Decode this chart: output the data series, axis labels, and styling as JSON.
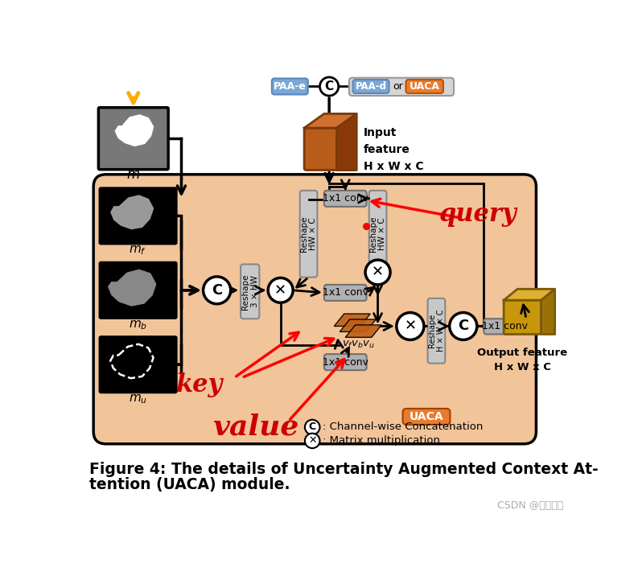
{
  "bg_color": "#ffffff",
  "diagram_bg": "#f2c49a",
  "paa_e_color": "#7ba7d4",
  "paa_d_color": "#7ba7d4",
  "uaca_top_color": "#e87c2e",
  "input_cube_front": "#b85c1a",
  "input_cube_top": "#d07030",
  "input_cube_right": "#8a3a08",
  "output_cube_front": "#c8960a",
  "output_cube_top": "#e0b030",
  "output_cube_right": "#9a7008",
  "conv_box_color": "#b0b0b0",
  "reshape_box_color": "#c8c8c8",
  "uaca_label_color": "#e87c2e",
  "watermark": "CSDN @韩墨大人",
  "caption_line1": "Figure 4: The details of Uncertainty Augmented Context At-",
  "caption_line2": "tention (UACA) module."
}
